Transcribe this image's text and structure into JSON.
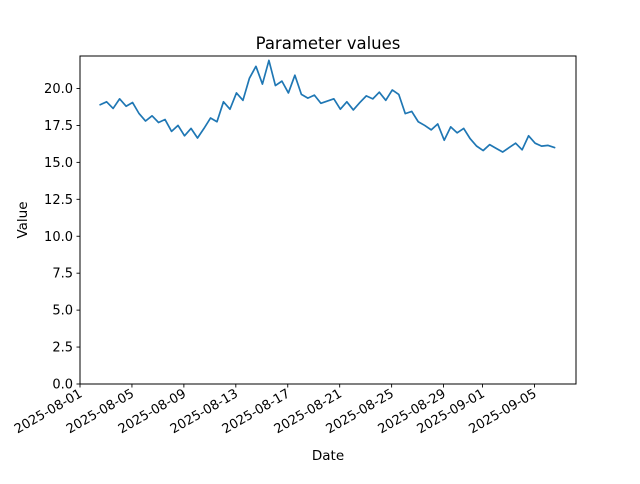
{
  "chart_data": {
    "type": "line",
    "title": "Parameter values",
    "xlabel": "Date",
    "ylabel": "Value",
    "legend": null,
    "grid": false,
    "background_color": "#ffffff",
    "axis_color": "#000000",
    "x_axis": {
      "tick_labels": [
        "2025-08-01",
        "2025-08-05",
        "2025-08-09",
        "2025-08-13",
        "2025-08-17",
        "2025-08-21",
        "2025-08-25",
        "2025-08-29",
        "2025-09-01",
        "2025-09-05"
      ],
      "tick_day_offsets": [
        0,
        4,
        8,
        12,
        16,
        20,
        24,
        28,
        31,
        35
      ],
      "range_days": [
        0,
        38.2
      ],
      "origin_date": "2025-08-01",
      "tick_label_rotation_deg": 30
    },
    "y_axis": {
      "tick_labels": [
        "0.0",
        "2.5",
        "5.0",
        "7.5",
        "10.0",
        "12.5",
        "15.0",
        "17.5",
        "20.0"
      ],
      "tick_values": [
        0,
        2.5,
        5,
        7.5,
        10,
        12.5,
        15,
        17.5,
        20
      ],
      "range": [
        0,
        22.2
      ]
    },
    "series": [
      {
        "name": "parameter-values",
        "color": "#1f77b4",
        "start_day_offset": 1.55,
        "step_days": 0.5,
        "values": [
          18.9,
          19.1,
          18.65,
          19.3,
          18.8,
          19.05,
          18.3,
          17.8,
          18.15,
          17.7,
          17.9,
          17.1,
          17.5,
          16.8,
          17.3,
          16.65,
          17.3,
          18.0,
          17.75,
          19.1,
          18.6,
          19.7,
          19.2,
          20.7,
          21.5,
          20.3,
          21.9,
          20.2,
          20.5,
          19.7,
          20.9,
          19.6,
          19.35,
          19.55,
          19.0,
          19.15,
          19.3,
          18.6,
          19.1,
          18.55,
          19.05,
          19.5,
          19.3,
          19.75,
          19.2,
          19.9,
          19.6,
          18.3,
          18.45,
          17.75,
          17.5,
          17.2,
          17.6,
          16.5,
          17.4,
          17.0,
          17.3,
          16.6,
          16.1,
          15.8,
          16.2,
          15.95,
          15.7,
          16.0,
          16.3,
          15.85,
          16.8,
          16.3,
          16.1,
          16.15,
          16.0
        ]
      }
    ]
  }
}
